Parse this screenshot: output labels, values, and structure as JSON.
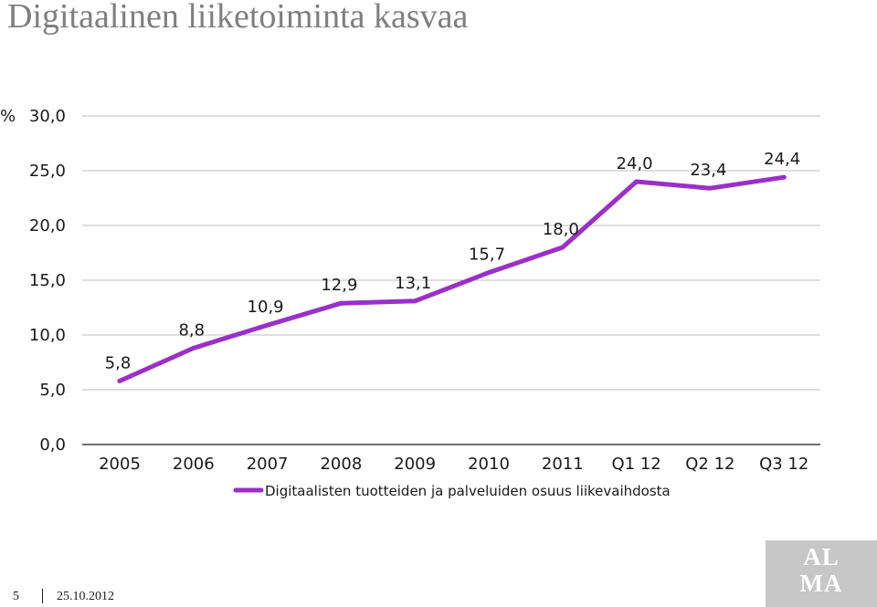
{
  "page": {
    "title": "Digitaalinen liiketoiminta kasvaa",
    "slide_number": "5",
    "date": "25.10.2012",
    "logo_text": "ALMA"
  },
  "chart_data": {
    "type": "line",
    "title": "",
    "ylabel": "%",
    "ylim": [
      0,
      30
    ],
    "yticks": [
      "0,0",
      "5,0",
      "10,0",
      "15,0",
      "20,0",
      "25,0",
      "30,0"
    ],
    "categories": [
      "2005",
      "2006",
      "2007",
      "2008",
      "2009",
      "2010",
      "2011",
      "Q1 12",
      "Q2 12",
      "Q3 12"
    ],
    "series": [
      {
        "name": "Digitaalisten tuotteiden ja palveluiden osuus liikevaihdosta",
        "values": [
          5.8,
          8.8,
          10.9,
          12.9,
          13.1,
          15.7,
          18.0,
          24.0,
          23.4,
          24.4
        ],
        "labels": [
          "5,8",
          "8,8",
          "10,9",
          "12,9",
          "13,1",
          "15,7",
          "18,0",
          "24,0",
          "23,4",
          "24,4"
        ],
        "color": "#9b30c8"
      }
    ],
    "grid": true,
    "gridline_color": "#bfbfbf",
    "legend_position": "bottom"
  }
}
